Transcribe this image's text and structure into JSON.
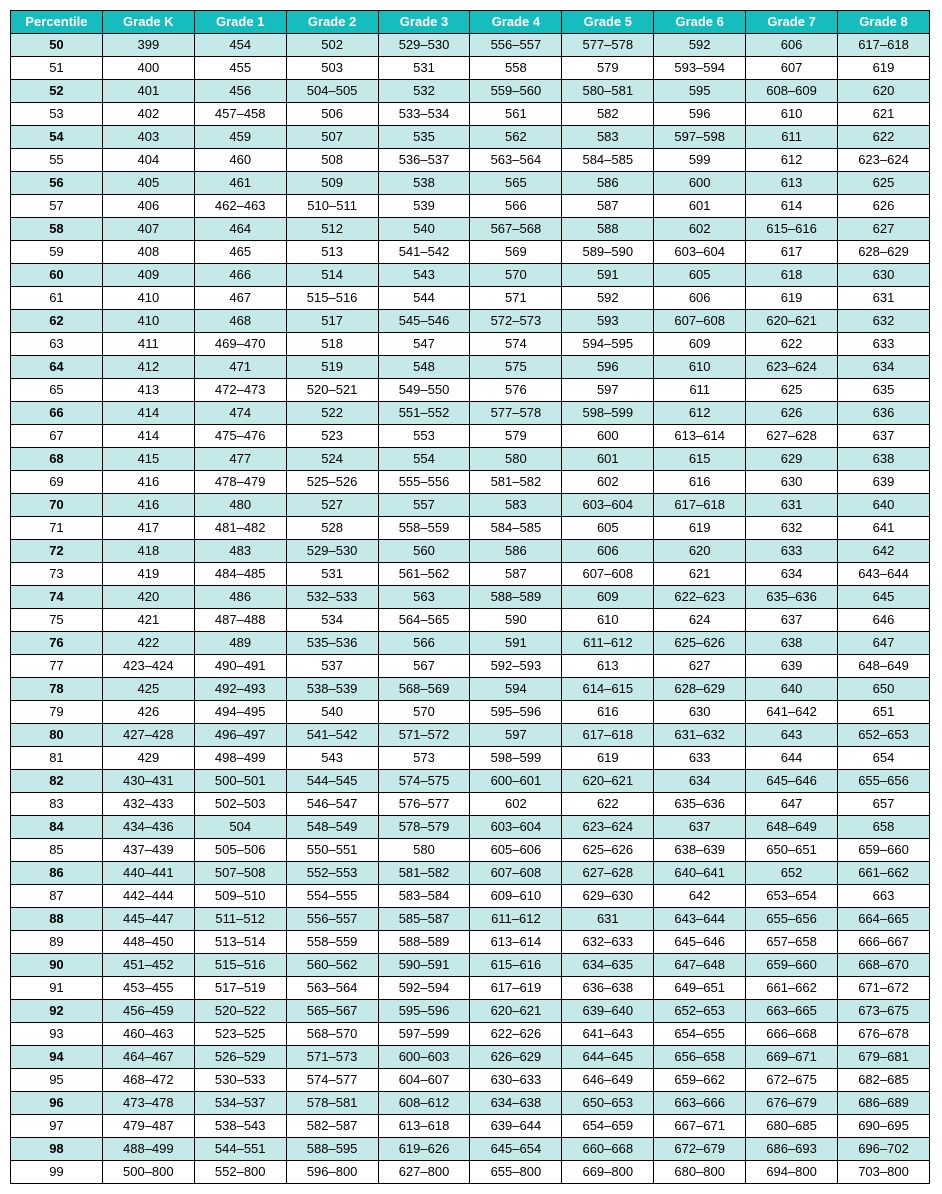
{
  "table": {
    "type": "table",
    "header_bg": "#16bdbe",
    "header_color": "#ffffff",
    "stripe_bg": "#c5e8e8",
    "border_color": "#000000",
    "font_family": "Arial",
    "font_size": 13,
    "columns": [
      "Percentile",
      "Grade K",
      "Grade 1",
      "Grade 2",
      "Grade 3",
      "Grade 4",
      "Grade 5",
      "Grade 6",
      "Grade 7",
      "Grade 8"
    ],
    "rows": [
      [
        "50",
        "399",
        "454",
        "502",
        "529–530",
        "556–557",
        "577–578",
        "592",
        "606",
        "617–618"
      ],
      [
        "51",
        "400",
        "455",
        "503",
        "531",
        "558",
        "579",
        "593–594",
        "607",
        "619"
      ],
      [
        "52",
        "401",
        "456",
        "504–505",
        "532",
        "559–560",
        "580–581",
        "595",
        "608–609",
        "620"
      ],
      [
        "53",
        "402",
        "457–458",
        "506",
        "533–534",
        "561",
        "582",
        "596",
        "610",
        "621"
      ],
      [
        "54",
        "403",
        "459",
        "507",
        "535",
        "562",
        "583",
        "597–598",
        "611",
        "622"
      ],
      [
        "55",
        "404",
        "460",
        "508",
        "536–537",
        "563–564",
        "584–585",
        "599",
        "612",
        "623–624"
      ],
      [
        "56",
        "405",
        "461",
        "509",
        "538",
        "565",
        "586",
        "600",
        "613",
        "625"
      ],
      [
        "57",
        "406",
        "462–463",
        "510–511",
        "539",
        "566",
        "587",
        "601",
        "614",
        "626"
      ],
      [
        "58",
        "407",
        "464",
        "512",
        "540",
        "567–568",
        "588",
        "602",
        "615–616",
        "627"
      ],
      [
        "59",
        "408",
        "465",
        "513",
        "541–542",
        "569",
        "589–590",
        "603–604",
        "617",
        "628–629"
      ],
      [
        "60",
        "409",
        "466",
        "514",
        "543",
        "570",
        "591",
        "605",
        "618",
        "630"
      ],
      [
        "61",
        "410",
        "467",
        "515–516",
        "544",
        "571",
        "592",
        "606",
        "619",
        "631"
      ],
      [
        "62",
        "410",
        "468",
        "517",
        "545–546",
        "572–573",
        "593",
        "607–608",
        "620–621",
        "632"
      ],
      [
        "63",
        "411",
        "469–470",
        "518",
        "547",
        "574",
        "594–595",
        "609",
        "622",
        "633"
      ],
      [
        "64",
        "412",
        "471",
        "519",
        "548",
        "575",
        "596",
        "610",
        "623–624",
        "634"
      ],
      [
        "65",
        "413",
        "472–473",
        "520–521",
        "549–550",
        "576",
        "597",
        "611",
        "625",
        "635"
      ],
      [
        "66",
        "414",
        "474",
        "522",
        "551–552",
        "577–578",
        "598–599",
        "612",
        "626",
        "636"
      ],
      [
        "67",
        "414",
        "475–476",
        "523",
        "553",
        "579",
        "600",
        "613–614",
        "627–628",
        "637"
      ],
      [
        "68",
        "415",
        "477",
        "524",
        "554",
        "580",
        "601",
        "615",
        "629",
        "638"
      ],
      [
        "69",
        "416",
        "478–479",
        "525–526",
        "555–556",
        "581–582",
        "602",
        "616",
        "630",
        "639"
      ],
      [
        "70",
        "416",
        "480",
        "527",
        "557",
        "583",
        "603–604",
        "617–618",
        "631",
        "640"
      ],
      [
        "71",
        "417",
        "481–482",
        "528",
        "558–559",
        "584–585",
        "605",
        "619",
        "632",
        "641"
      ],
      [
        "72",
        "418",
        "483",
        "529–530",
        "560",
        "586",
        "606",
        "620",
        "633",
        "642"
      ],
      [
        "73",
        "419",
        "484–485",
        "531",
        "561–562",
        "587",
        "607–608",
        "621",
        "634",
        "643–644"
      ],
      [
        "74",
        "420",
        "486",
        "532–533",
        "563",
        "588–589",
        "609",
        "622–623",
        "635–636",
        "645"
      ],
      [
        "75",
        "421",
        "487–488",
        "534",
        "564–565",
        "590",
        "610",
        "624",
        "637",
        "646"
      ],
      [
        "76",
        "422",
        "489",
        "535–536",
        "566",
        "591",
        "611–612",
        "625–626",
        "638",
        "647"
      ],
      [
        "77",
        "423–424",
        "490–491",
        "537",
        "567",
        "592–593",
        "613",
        "627",
        "639",
        "648–649"
      ],
      [
        "78",
        "425",
        "492–493",
        "538–539",
        "568–569",
        "594",
        "614–615",
        "628–629",
        "640",
        "650"
      ],
      [
        "79",
        "426",
        "494–495",
        "540",
        "570",
        "595–596",
        "616",
        "630",
        "641–642",
        "651"
      ],
      [
        "80",
        "427–428",
        "496–497",
        "541–542",
        "571–572",
        "597",
        "617–618",
        "631–632",
        "643",
        "652–653"
      ],
      [
        "81",
        "429",
        "498–499",
        "543",
        "573",
        "598–599",
        "619",
        "633",
        "644",
        "654"
      ],
      [
        "82",
        "430–431",
        "500–501",
        "544–545",
        "574–575",
        "600–601",
        "620–621",
        "634",
        "645–646",
        "655–656"
      ],
      [
        "83",
        "432–433",
        "502–503",
        "546–547",
        "576–577",
        "602",
        "622",
        "635–636",
        "647",
        "657"
      ],
      [
        "84",
        "434–436",
        "504",
        "548–549",
        "578–579",
        "603–604",
        "623–624",
        "637",
        "648–649",
        "658"
      ],
      [
        "85",
        "437–439",
        "505–506",
        "550–551",
        "580",
        "605–606",
        "625–626",
        "638–639",
        "650–651",
        "659–660"
      ],
      [
        "86",
        "440–441",
        "507–508",
        "552–553",
        "581–582",
        "607–608",
        "627–628",
        "640–641",
        "652",
        "661–662"
      ],
      [
        "87",
        "442–444",
        "509–510",
        "554–555",
        "583–584",
        "609–610",
        "629–630",
        "642",
        "653–654",
        "663"
      ],
      [
        "88",
        "445–447",
        "511–512",
        "556–557",
        "585–587",
        "611–612",
        "631",
        "643–644",
        "655–656",
        "664–665"
      ],
      [
        "89",
        "448–450",
        "513–514",
        "558–559",
        "588–589",
        "613–614",
        "632–633",
        "645–646",
        "657–658",
        "666–667"
      ],
      [
        "90",
        "451–452",
        "515–516",
        "560–562",
        "590–591",
        "615–616",
        "634–635",
        "647–648",
        "659–660",
        "668–670"
      ],
      [
        "91",
        "453–455",
        "517–519",
        "563–564",
        "592–594",
        "617–619",
        "636–638",
        "649–651",
        "661–662",
        "671–672"
      ],
      [
        "92",
        "456–459",
        "520–522",
        "565–567",
        "595–596",
        "620–621",
        "639–640",
        "652–653",
        "663–665",
        "673–675"
      ],
      [
        "93",
        "460–463",
        "523–525",
        "568–570",
        "597–599",
        "622–626",
        "641–643",
        "654–655",
        "666–668",
        "676–678"
      ],
      [
        "94",
        "464–467",
        "526–529",
        "571–573",
        "600–603",
        "626–629",
        "644–645",
        "656–658",
        "669–671",
        "679–681"
      ],
      [
        "95",
        "468–472",
        "530–533",
        "574–577",
        "604–607",
        "630–633",
        "646–649",
        "659–662",
        "672–675",
        "682–685"
      ],
      [
        "96",
        "473–478",
        "534–537",
        "578–581",
        "608–612",
        "634–638",
        "650–653",
        "663–666",
        "676–679",
        "686–689"
      ],
      [
        "97",
        "479–487",
        "538–543",
        "582–587",
        "613–618",
        "639–644",
        "654–659",
        "667–671",
        "680–685",
        "690–695"
      ],
      [
        "98",
        "488–499",
        "544–551",
        "588–595",
        "619–626",
        "645–654",
        "660–668",
        "672–679",
        "686–693",
        "696–702"
      ],
      [
        "99",
        "500–800",
        "552–800",
        "596–800",
        "627–800",
        "655–800",
        "669–800",
        "680–800",
        "694–800",
        "703–800"
      ]
    ]
  }
}
